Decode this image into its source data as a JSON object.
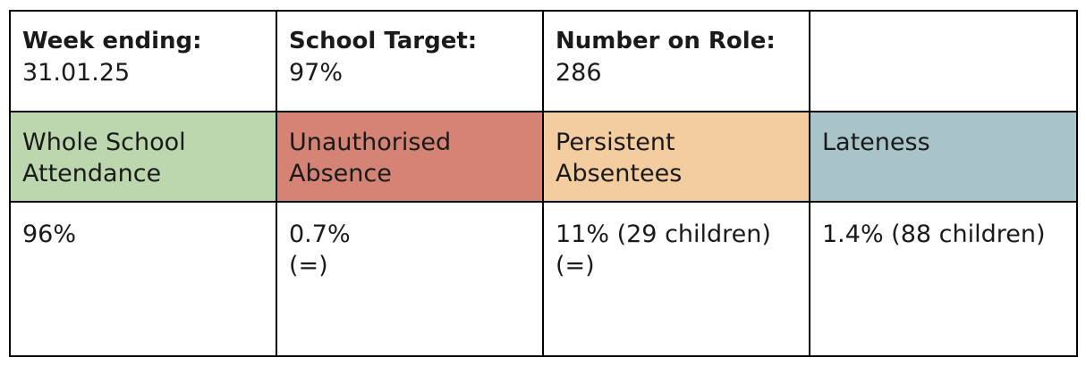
{
  "header": {
    "week_ending_label": "Week ending:",
    "week_ending_value": "31.01.25",
    "target_label": "School Target:",
    "target_value": "97%",
    "roll_label": "Number on Role:",
    "roll_value": "286"
  },
  "metrics": [
    {
      "line1": "Whole School",
      "line2": "Attendance",
      "color": "#bcd7ae"
    },
    {
      "line1": "Unauthorised",
      "line2": "Absence",
      "color": "#d48374"
    },
    {
      "line1": "Persistent",
      "line2": "Absentees",
      "color": "#f3cca0"
    },
    {
      "line1": "Lateness",
      "line2": "",
      "color": "#a9c4c8"
    }
  ],
  "values": [
    {
      "line1": "96%",
      "line2": ""
    },
    {
      "line1": "0.7%",
      "line2": "(=)"
    },
    {
      "line1": "11% (29 children)",
      "line2": "(=)"
    },
    {
      "line1": "1.4% (88 children)",
      "line2": ""
    }
  ]
}
